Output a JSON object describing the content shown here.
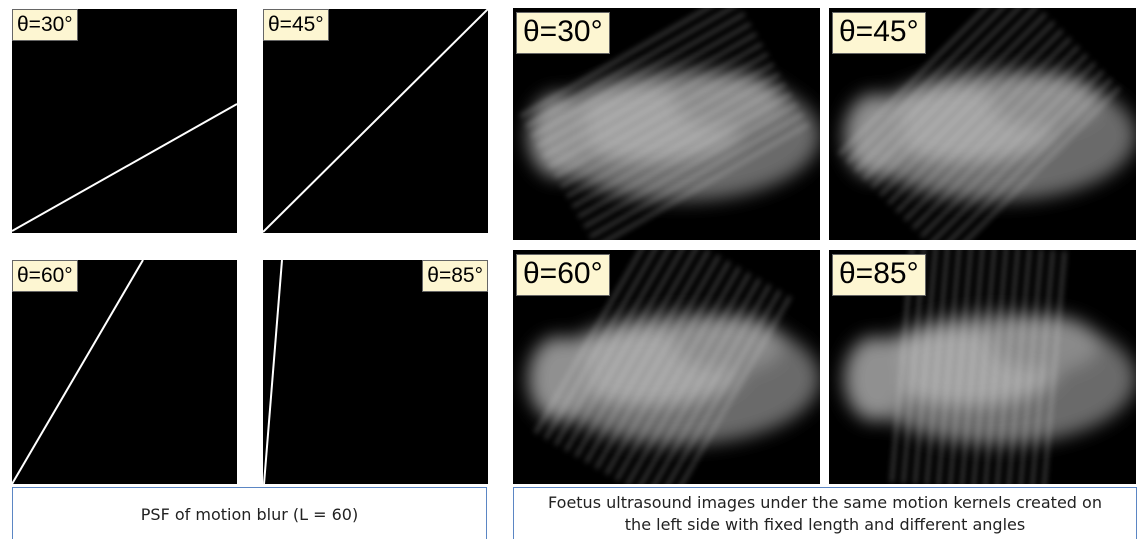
{
  "psf_panels": [
    {
      "label": "θ=30°"
    },
    {
      "label": "θ=45°"
    },
    {
      "label": "θ=60°"
    },
    {
      "label": "θ=85°"
    }
  ],
  "ultrasound_panels": [
    {
      "label": "θ=30°"
    },
    {
      "label": "θ=45°"
    },
    {
      "label": "θ=60°"
    },
    {
      "label": "θ=85°"
    }
  ],
  "captions": {
    "left": "PSF of motion blur (L = 60)",
    "right": "Foetus ultrasound images under the same motion kernels created on the left side with fixed length and different angles"
  }
}
